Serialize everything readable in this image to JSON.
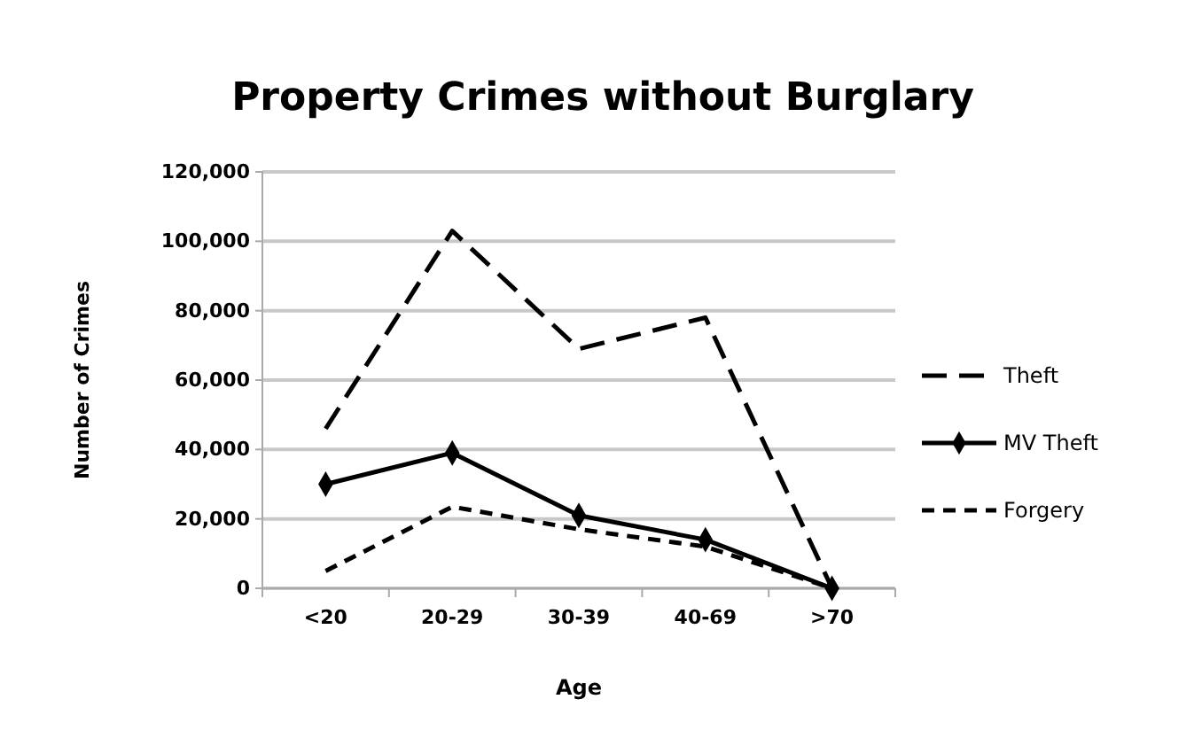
{
  "chart_data": {
    "type": "line",
    "title": "Property Crimes without Burglary",
    "xlabel": "Age",
    "ylabel": "Number of Crimes",
    "categories": [
      "<20",
      "20-29",
      "30-39",
      "40-69",
      ">70"
    ],
    "ylim": [
      0,
      120000
    ],
    "yticks": [
      {
        "value": 0,
        "label": "0"
      },
      {
        "value": 20000,
        "label": "20,000"
      },
      {
        "value": 40000,
        "label": "40,000"
      },
      {
        "value": 60000,
        "label": "60,000"
      },
      {
        "value": 80000,
        "label": "80,000"
      },
      {
        "value": 100000,
        "label": "100,000"
      },
      {
        "value": 120000,
        "label": "120,000"
      }
    ],
    "grid": "y",
    "legend": "right",
    "series": [
      {
        "name": "Theft",
        "color": "#000000",
        "line_style": "dashed",
        "marker": "none",
        "values": [
          46000,
          103000,
          69000,
          78000,
          0
        ]
      },
      {
        "name": "MV Theft",
        "color": "#000000",
        "line_style": "solid",
        "marker": "diamond",
        "values": [
          30000,
          39000,
          21000,
          14000,
          0
        ]
      },
      {
        "name": "Forgery",
        "color": "#000000",
        "line_style": "dotted",
        "marker": "none",
        "values": [
          5000,
          23500,
          17000,
          12000,
          0
        ]
      }
    ]
  }
}
